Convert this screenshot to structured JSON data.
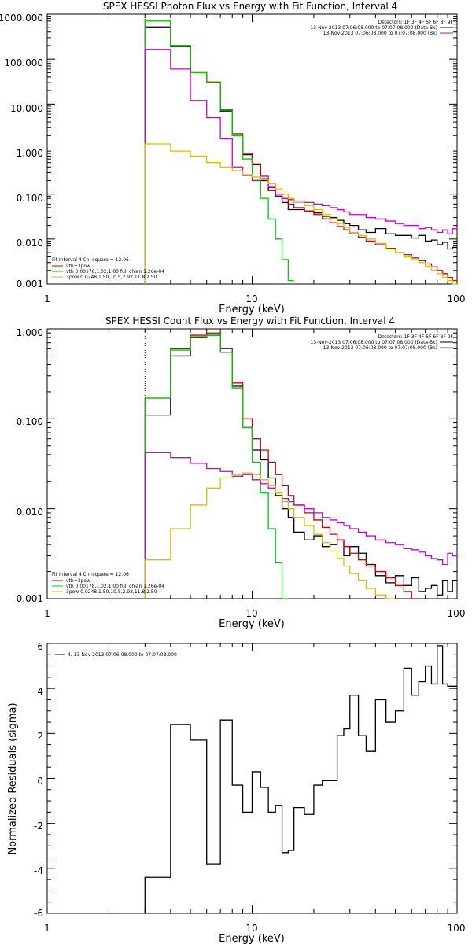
{
  "chart_data": [
    {
      "type": "line",
      "title": "SPEX HESSI Photon Flux vs Energy with Fit Function, Interval 4",
      "xlabel": "Energy (keV)",
      "ylabel": "",
      "x_scale": "log",
      "y_scale": "log",
      "xlim": [
        1,
        100
      ],
      "ylim": [
        0.001,
        1000
      ],
      "x_ticks": [
        "1",
        "10",
        "100"
      ],
      "y_ticks": [
        "1000.000",
        "100.000",
        "10.000",
        "1.000",
        "0.100",
        "0.010",
        "0.001"
      ],
      "legend_top": {
        "placement": "top-right",
        "header": "Detectors: 1F 3F 4F 5F 6F 8F 9F",
        "entries": [
          {
            "label": "13-Nov-2013 07:06:08.000 to 07:07:08.000 (Data-Bk)",
            "color": "#000000"
          },
          {
            "label": "13-Nov-2013 07:06:08.000 to 07:07:08.000 (Bk)",
            "color": "#cc00cc"
          }
        ]
      },
      "legend_bottom": {
        "placement": "bottom-left",
        "header": "Fit Interval  4    Chi-square = 12.06",
        "entries": [
          {
            "label": "vth+3pow",
            "color": "#cc0000"
          },
          {
            "label": "vth 0.00178,1.02,1.00  full chian 1.26e-04",
            "color": "#00cc00"
          },
          {
            "label": "3pow 0.0248,1.50,10.5,2.92,11.8,2.50",
            "color": "#ddbb00"
          }
        ]
      },
      "energy_edges": [
        3,
        4,
        5,
        6,
        7,
        8,
        9,
        10,
        11,
        12,
        13,
        14,
        15,
        16,
        18,
        20,
        22,
        24,
        26,
        28,
        30,
        33,
        36,
        40,
        45,
        50,
        55,
        60,
        65,
        70,
        75,
        80,
        85,
        90,
        95,
        100
      ],
      "series": [
        {
          "name": "",
          "color": "#000000",
          "values": [
            520,
            190,
            50,
            30,
            7,
            2.0,
            0.75,
            0.45,
            0.2,
            0.12,
            0.09,
            0.065,
            0.045,
            0.045,
            0.042,
            0.038,
            0.032,
            0.03,
            0.026,
            0.022,
            0.02,
            0.016,
            0.014,
            0.017,
            0.013,
            0.012,
            0.012,
            0.0105,
            0.012,
            0.009,
            0.0095,
            0.0075,
            0.0085,
            0.006,
            0.0065
          ]
        },
        {
          "name": "",
          "color": "#cc0000",
          "values": [
            700,
            200,
            52,
            31,
            7.5,
            2.2,
            0.8,
            0.47,
            0.22,
            0.14,
            0.1,
            0.08,
            0.06,
            0.05,
            0.042,
            0.035,
            0.028,
            0.023,
            0.019,
            0.016,
            0.013,
            0.011,
            0.009,
            0.0075,
            0.0062,
            0.005,
            0.0045,
            0.0038,
            0.0033,
            0.0028,
            0.0024,
            0.002,
            0.0017,
            0.0014,
            0.0012
          ]
        },
        {
          "name": "",
          "color": "#00cc00",
          "values": [
            700,
            195,
            50,
            30,
            7.3,
            2.0,
            0.6,
            0.2,
            0.08,
            0.028,
            0.01,
            0.0035,
            0.0012
          ]
        },
        {
          "name": "",
          "color": "#cc00cc",
          "values": [
            165,
            60,
            12,
            5,
            1.7,
            0.4,
            0.26,
            0.2,
            0.25,
            0.15,
            0.1,
            0.08,
            0.075,
            0.07,
            0.065,
            0.06,
            0.055,
            0.05,
            0.045,
            0.04,
            0.035,
            0.035,
            0.03,
            0.028,
            0.025,
            0.022,
            0.02,
            0.02,
            0.017,
            0.018,
            0.016,
            0.014,
            0.016,
            0.013,
            0.017
          ]
        },
        {
          "name": "",
          "color": "#ddbb00",
          "values": [
            1.3,
            0.9,
            0.7,
            0.5,
            0.4,
            0.33,
            0.27,
            0.24,
            0.21,
            0.17,
            0.13,
            0.1,
            0.08,
            0.065,
            0.055,
            0.045,
            0.035,
            0.028,
            0.022,
            0.018,
            0.014,
            0.012,
            0.01,
            0.008,
            0.006,
            0.005,
            0.004,
            0.0035,
            0.003,
            0.0025,
            0.002,
            0.0017,
            0.0014,
            0.0012,
            0.001
          ]
        }
      ]
    },
    {
      "type": "line",
      "title": "SPEX HESSI Count Flux vs Energy with Fit Function, Interval 4",
      "xlabel": "Energy (keV)",
      "ylabel": "",
      "x_scale": "log",
      "y_scale": "log",
      "xlim": [
        1,
        100
      ],
      "ylim": [
        0.001,
        1
      ],
      "x_ticks": [
        "1",
        "10",
        "100"
      ],
      "y_ticks": [
        "1.000",
        "0.100",
        "0.010",
        "0.001"
      ],
      "legend_top": {
        "placement": "top-right",
        "header": "Detectors: 1F 3F 4F 5F 6F 8F 9F",
        "entries": [
          {
            "label": "13-Nov-2013 07:06:08.000 to 07:07:08.000 (Data-Bk)",
            "color": "#000000"
          },
          {
            "label": "13-Nov-2013 07:06:08.000 to 07:07:08.000 (Bk)",
            "color": "#cc00cc"
          }
        ]
      },
      "legend_bottom": {
        "placement": "bottom-left",
        "header": "Fit Interval  4    Chi-square = 12.06",
        "entries": [
          {
            "label": "vth+3pow",
            "color": "#cc0000"
          },
          {
            "label": "vth 0.00178,1.02,1.00  full chian 1.26e-04",
            "color": "#00cc00"
          },
          {
            "label": "3pow 0.0248,1.50,10.5,2.92,11.8,2.50",
            "color": "#ddbb00"
          }
        ]
      },
      "energy_edges": [
        3,
        4,
        5,
        6,
        7,
        8,
        9,
        10,
        11,
        12,
        13,
        14,
        15,
        16,
        18,
        20,
        22,
        24,
        26,
        28,
        30,
        33,
        36,
        40,
        45,
        50,
        55,
        60,
        65,
        70,
        75,
        80,
        85,
        90,
        95,
        100
      ],
      "series": [
        {
          "name": "",
          "color": "#000000",
          "values": [
            0.11,
            0.5,
            0.8,
            0.85,
            0.55,
            0.23,
            0.08,
            0.045,
            0.035,
            0.022,
            0.014,
            0.01,
            0.008,
            0.0055,
            0.0045,
            0.005,
            0.0038,
            0.004,
            0.0045,
            0.003,
            0.0038,
            0.0032,
            0.0024,
            0.0018,
            0.0015,
            0.0018,
            0.0014,
            0.0017,
            0.0012,
            0.0013,
            0.0014,
            0.0011,
            0.0016,
            0.0012,
            0.0016
          ]
        },
        {
          "name": "",
          "color": "#cc0000",
          "values": [
            0.17,
            0.6,
            0.85,
            0.9,
            0.6,
            0.25,
            0.1,
            0.06,
            0.045,
            0.033,
            0.024,
            0.018,
            0.014,
            0.011,
            0.009,
            0.0075,
            0.0062,
            0.0052,
            0.0045,
            0.0038,
            0.0032,
            0.0027,
            0.0023,
            0.002,
            0.0017,
            0.0014,
            0.0012,
            0.001
          ]
        },
        {
          "name": "",
          "color": "#00cc00",
          "values": [
            0.17,
            0.58,
            0.82,
            0.85,
            0.55,
            0.22,
            0.08,
            0.033,
            0.015,
            0.006,
            0.0025,
            0.001
          ]
        },
        {
          "name": "",
          "color": "#cc00cc",
          "values": [
            0.042,
            0.037,
            0.032,
            0.028,
            0.026,
            0.023,
            0.024,
            0.021,
            0.019,
            0.017,
            0.015,
            0.013,
            0.012,
            0.011,
            0.01,
            0.009,
            0.008,
            0.0075,
            0.007,
            0.0065,
            0.006,
            0.0055,
            0.005,
            0.0045,
            0.0042,
            0.004,
            0.0036,
            0.0035,
            0.0033,
            0.003,
            0.0028,
            0.0027,
            0.0024,
            0.0032,
            0.003
          ]
        },
        {
          "name": "",
          "color": "#ddbb00",
          "values": [
            0.0027,
            0.006,
            0.011,
            0.017,
            0.022,
            0.024,
            0.025,
            0.024,
            0.021,
            0.018,
            0.015,
            0.012,
            0.01,
            0.008,
            0.0065,
            0.0052,
            0.0042,
            0.0034,
            0.0028,
            0.0023,
            0.0019,
            0.0016,
            0.0013,
            0.0011,
            0.001
          ]
        }
      ]
    },
    {
      "type": "line",
      "title": "",
      "xlabel": "Energy (keV)",
      "ylabel": "Normalized Residuals (sigma)",
      "x_scale": "log",
      "y_scale": "linear",
      "xlim": [
        1,
        100
      ],
      "ylim": [
        -6,
        6
      ],
      "x_ticks": [
        "1",
        "10",
        "100"
      ],
      "y_ticks": [
        "6",
        "4",
        "2",
        "0",
        "-2",
        "-4",
        "-6"
      ],
      "legend": {
        "placement": "top-left",
        "entries": [
          {
            "label": "4. 13-Nov-2013 07:06:08.000 to 07:07:08.000",
            "color": "#000000"
          }
        ]
      },
      "energy_edges": [
        3,
        4,
        5,
        6,
        7,
        8,
        9,
        10,
        11,
        12,
        13,
        14,
        15,
        16,
        18,
        20,
        22,
        24,
        26,
        28,
        30,
        33,
        36,
        40,
        45,
        50,
        55,
        60,
        65,
        70,
        75,
        80,
        85,
        90,
        95,
        100
      ],
      "series": [
        {
          "name": "",
          "color": "#000000",
          "values": [
            -4.4,
            2.4,
            1.7,
            -3.8,
            2.6,
            -0.3,
            -1.5,
            0.3,
            -0.4,
            -1.5,
            -1.2,
            -3.3,
            -3.2,
            -1.3,
            -1.6,
            -0.3,
            -0.1,
            -0.1,
            1.9,
            2.2,
            3.7,
            1.9,
            1.2,
            3.5,
            2.5,
            3.0,
            4.9,
            3.7,
            4.3,
            5.0,
            4.2,
            5.9,
            4.2,
            4.1,
            4.1
          ]
        }
      ]
    }
  ]
}
